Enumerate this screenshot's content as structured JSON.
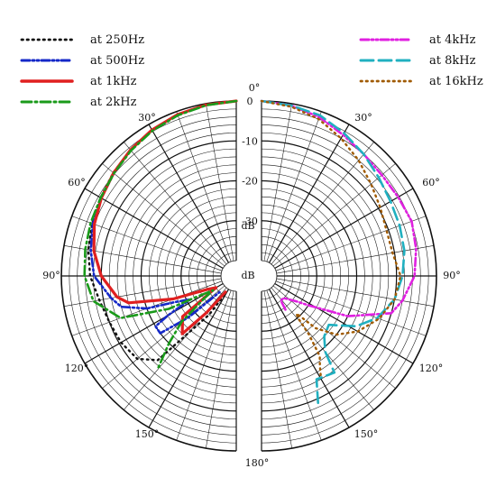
{
  "chart_data": {
    "type": "polar",
    "radial_unit": "dB",
    "radial_ticks": [
      "0",
      "-10",
      "-20",
      "-30"
    ],
    "radial_range": [
      -40,
      0
    ],
    "angle_ticks": [
      "0°",
      "30°",
      "60°",
      "90°",
      "120°",
      "150°",
      "180°"
    ],
    "angle_range": [
      0,
      180
    ],
    "grid": true,
    "legend_left": [
      "at 250Hz",
      "at 500Hz",
      "at 1kHz",
      "at 2kHz"
    ],
    "legend_right": [
      "at 4kHz",
      "at 8kHz",
      "at 16kHz"
    ],
    "series": [
      {
        "name": "at 250Hz",
        "side": "left",
        "color": "#111111",
        "dash": "1.5,4.5",
        "width": 2.4,
        "points": [
          [
            0,
            0
          ],
          [
            10,
            -0.3
          ],
          [
            20,
            -0.8
          ],
          [
            30,
            -1.6
          ],
          [
            40,
            -2.6
          ],
          [
            50,
            -3.6
          ],
          [
            60,
            -4.6
          ],
          [
            70,
            -5.4
          ],
          [
            80,
            -6.2
          ],
          [
            90,
            -7.2
          ],
          [
            100,
            -9
          ],
          [
            110,
            -10
          ],
          [
            120,
            -10.5
          ],
          [
            130,
            -11.5
          ],
          [
            137,
            -15
          ],
          [
            145,
            -32
          ],
          [
            149,
            -39
          ]
        ]
      },
      {
        "name": "at 500Hz",
        "side": "left",
        "color": "#1428c8",
        "dash": "9,3,2,3,2,3",
        "width": 2.6,
        "points": [
          [
            0,
            0
          ],
          [
            10,
            -0.3
          ],
          [
            20,
            -0.8
          ],
          [
            30,
            -1.6
          ],
          [
            40,
            -2.6
          ],
          [
            50,
            -3.8
          ],
          [
            60,
            -4.8
          ],
          [
            70,
            -5.6
          ],
          [
            80,
            -6.8
          ],
          [
            90,
            -8.2
          ],
          [
            100,
            -12
          ],
          [
            105,
            -14
          ],
          [
            110,
            -20
          ],
          [
            113,
            -27
          ],
          [
            117,
            -31
          ],
          [
            120,
            -24
          ],
          [
            122,
            -20
          ],
          [
            127,
            -20
          ],
          [
            131,
            -28
          ],
          [
            134,
            -38
          ]
        ]
      },
      {
        "name": "at 1kHz",
        "side": "left",
        "color": "#e02020",
        "dash": "",
        "width": 3.2,
        "points": [
          [
            0,
            0
          ],
          [
            10,
            -0.3
          ],
          [
            20,
            -0.8
          ],
          [
            30,
            -1.6
          ],
          [
            40,
            -2.6
          ],
          [
            50,
            -3.7
          ],
          [
            60,
            -4.8
          ],
          [
            70,
            -6
          ],
          [
            80,
            -7.6
          ],
          [
            90,
            -10
          ],
          [
            100,
            -13.5
          ],
          [
            104,
            -16
          ],
          [
            110,
            -27
          ],
          [
            115,
            -36
          ],
          [
            120,
            -38
          ],
          [
            127,
            -27
          ],
          [
            137,
            -24
          ],
          [
            141,
            -32
          ],
          [
            146,
            -39
          ]
        ]
      },
      {
        "name": "at 2kHz",
        "side": "left",
        "color": "#1a9a1a",
        "dash": "11,4,2,4",
        "width": 2.6,
        "points": [
          [
            0,
            0
          ],
          [
            10,
            -0.4
          ],
          [
            20,
            -1
          ],
          [
            30,
            -1.8
          ],
          [
            40,
            -2.8
          ],
          [
            50,
            -3.8
          ],
          [
            60,
            -4.6
          ],
          [
            70,
            -5
          ],
          [
            80,
            -5.4
          ],
          [
            90,
            -5.8
          ],
          [
            100,
            -7.5
          ],
          [
            110,
            -13
          ],
          [
            116,
            -25
          ],
          [
            118,
            -33
          ],
          [
            122,
            -37
          ],
          [
            125,
            -34
          ],
          [
            130,
            -26
          ],
          [
            135,
            -20
          ],
          [
            140,
            -13
          ]
        ]
      },
      {
        "name": "at 4kHz",
        "side": "right",
        "color": "#e020e0",
        "dash": "9,3,2,3,2,3",
        "width": 2.6,
        "points": [
          [
            0,
            0
          ],
          [
            10,
            -0.5
          ],
          [
            20,
            -1.5
          ],
          [
            30,
            -3
          ],
          [
            40,
            -4
          ],
          [
            50,
            -4.5
          ],
          [
            60,
            -4.3
          ],
          [
            70,
            -3.8
          ],
          [
            80,
            -4.5
          ],
          [
            90,
            -5.5
          ],
          [
            100,
            -8
          ],
          [
            106,
            -10
          ],
          [
            115,
            -20
          ],
          [
            122,
            -30
          ],
          [
            126,
            -33
          ],
          [
            135,
            -36
          ],
          [
            142,
            -36
          ],
          [
            145,
            -33
          ]
        ]
      },
      {
        "name": "at 8kHz",
        "side": "right",
        "color": "#20b0c0",
        "dash": "14,6",
        "width": 2.6,
        "points": [
          [
            0,
            0
          ],
          [
            10,
            -0.5
          ],
          [
            20,
            -1
          ],
          [
            30,
            -2.5
          ],
          [
            40,
            -4
          ],
          [
            50,
            -5.5
          ],
          [
            60,
            -6.5
          ],
          [
            70,
            -7
          ],
          [
            80,
            -7.5
          ],
          [
            90,
            -8.5
          ],
          [
            100,
            -10
          ],
          [
            110,
            -13
          ],
          [
            118,
            -17
          ],
          [
            126,
            -23
          ],
          [
            134,
            -22
          ],
          [
            140,
            -19
          ],
          [
            143,
            -13.5
          ],
          [
            152,
            -14.5
          ],
          [
            156,
            -9
          ]
        ]
      },
      {
        "name": "at 16kHz",
        "side": "right",
        "color": "#a05a00",
        "dash": "1.5,4.5",
        "width": 2.4,
        "points": [
          [
            0,
            0
          ],
          [
            10,
            -0.8
          ],
          [
            20,
            -2
          ],
          [
            30,
            -4
          ],
          [
            40,
            -6
          ],
          [
            50,
            -8
          ],
          [
            60,
            -9.5
          ],
          [
            70,
            -10.5
          ],
          [
            80,
            -10.5
          ],
          [
            90,
            -9
          ],
          [
            100,
            -10
          ],
          [
            110,
            -12.5
          ],
          [
            120,
            -16
          ],
          [
            128,
            -20
          ],
          [
            134,
            -25
          ],
          [
            137,
            -31
          ],
          [
            139,
            -30
          ],
          [
            141,
            -25
          ],
          [
            144,
            -19
          ],
          [
            147,
            -17
          ],
          [
            150,
            -14
          ]
        ]
      }
    ]
  }
}
